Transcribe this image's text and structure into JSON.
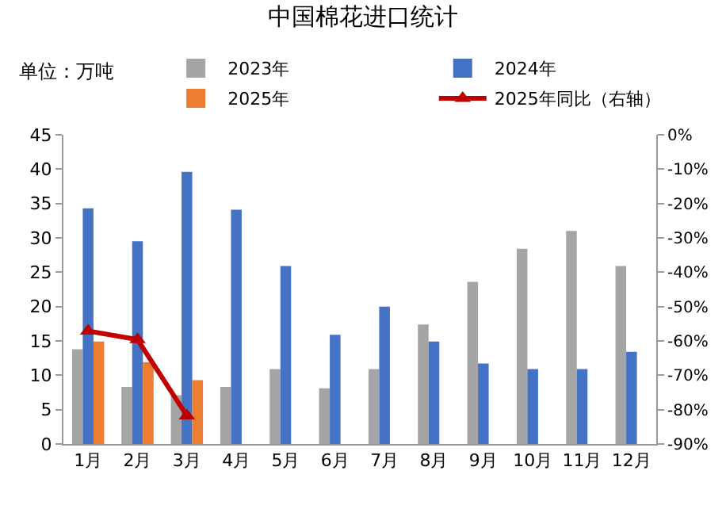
{
  "chart_data": {
    "type": "bar",
    "title": "中国棉花进口统计",
    "annotations": [
      "单位：万吨"
    ],
    "categories": [
      "1月",
      "2月",
      "3月",
      "4月",
      "5月",
      "6月",
      "7月",
      "8月",
      "9月",
      "10月",
      "11月",
      "12月"
    ],
    "series": [
      {
        "name": "2023年",
        "color": "#a5a5a5",
        "values": [
          13.8,
          8.3,
          7.1,
          8.3,
          10.9,
          8.1,
          10.9,
          17.4,
          23.6,
          28.4,
          31.0,
          25.9
        ]
      },
      {
        "name": "2024年",
        "color": "#4472c4",
        "values": [
          34.3,
          29.5,
          39.6,
          34.1,
          25.9,
          15.9,
          20.0,
          14.9,
          11.7,
          10.9,
          10.9,
          13.4
        ]
      },
      {
        "name": "2025年",
        "color": "#ed7d31",
        "values": [
          14.9,
          11.9,
          9.3,
          null,
          null,
          null,
          null,
          null,
          null,
          null,
          null,
          null
        ]
      },
      {
        "name": "2025年同比（右轴）",
        "type": "line",
        "axis": "y2",
        "color": "#c00000",
        "marker": "triangle",
        "values": [
          -57.1,
          -59.6,
          -81.8,
          null,
          null,
          null,
          null,
          null,
          null,
          null,
          null,
          null
        ]
      }
    ],
    "ylim": [
      0,
      45
    ],
    "yticks": [
      0,
      5,
      10,
      15,
      20,
      25,
      30,
      35,
      40,
      45
    ],
    "y2lim": [
      -90,
      0
    ],
    "y2ticks": [
      {
        "value": 0,
        "label": "0%"
      },
      {
        "value": -10,
        "label": "-10%"
      },
      {
        "value": -20,
        "label": "-20%"
      },
      {
        "value": -30,
        "label": "-30%"
      },
      {
        "value": -40,
        "label": "-40%"
      },
      {
        "value": -50,
        "label": "-50%"
      },
      {
        "value": -60,
        "label": "-60%"
      },
      {
        "value": -70,
        "label": "-70%"
      },
      {
        "value": -80,
        "label": "-80%"
      },
      {
        "value": -90,
        "label": "-90%"
      }
    ],
    "grid": false,
    "legend": "top"
  }
}
